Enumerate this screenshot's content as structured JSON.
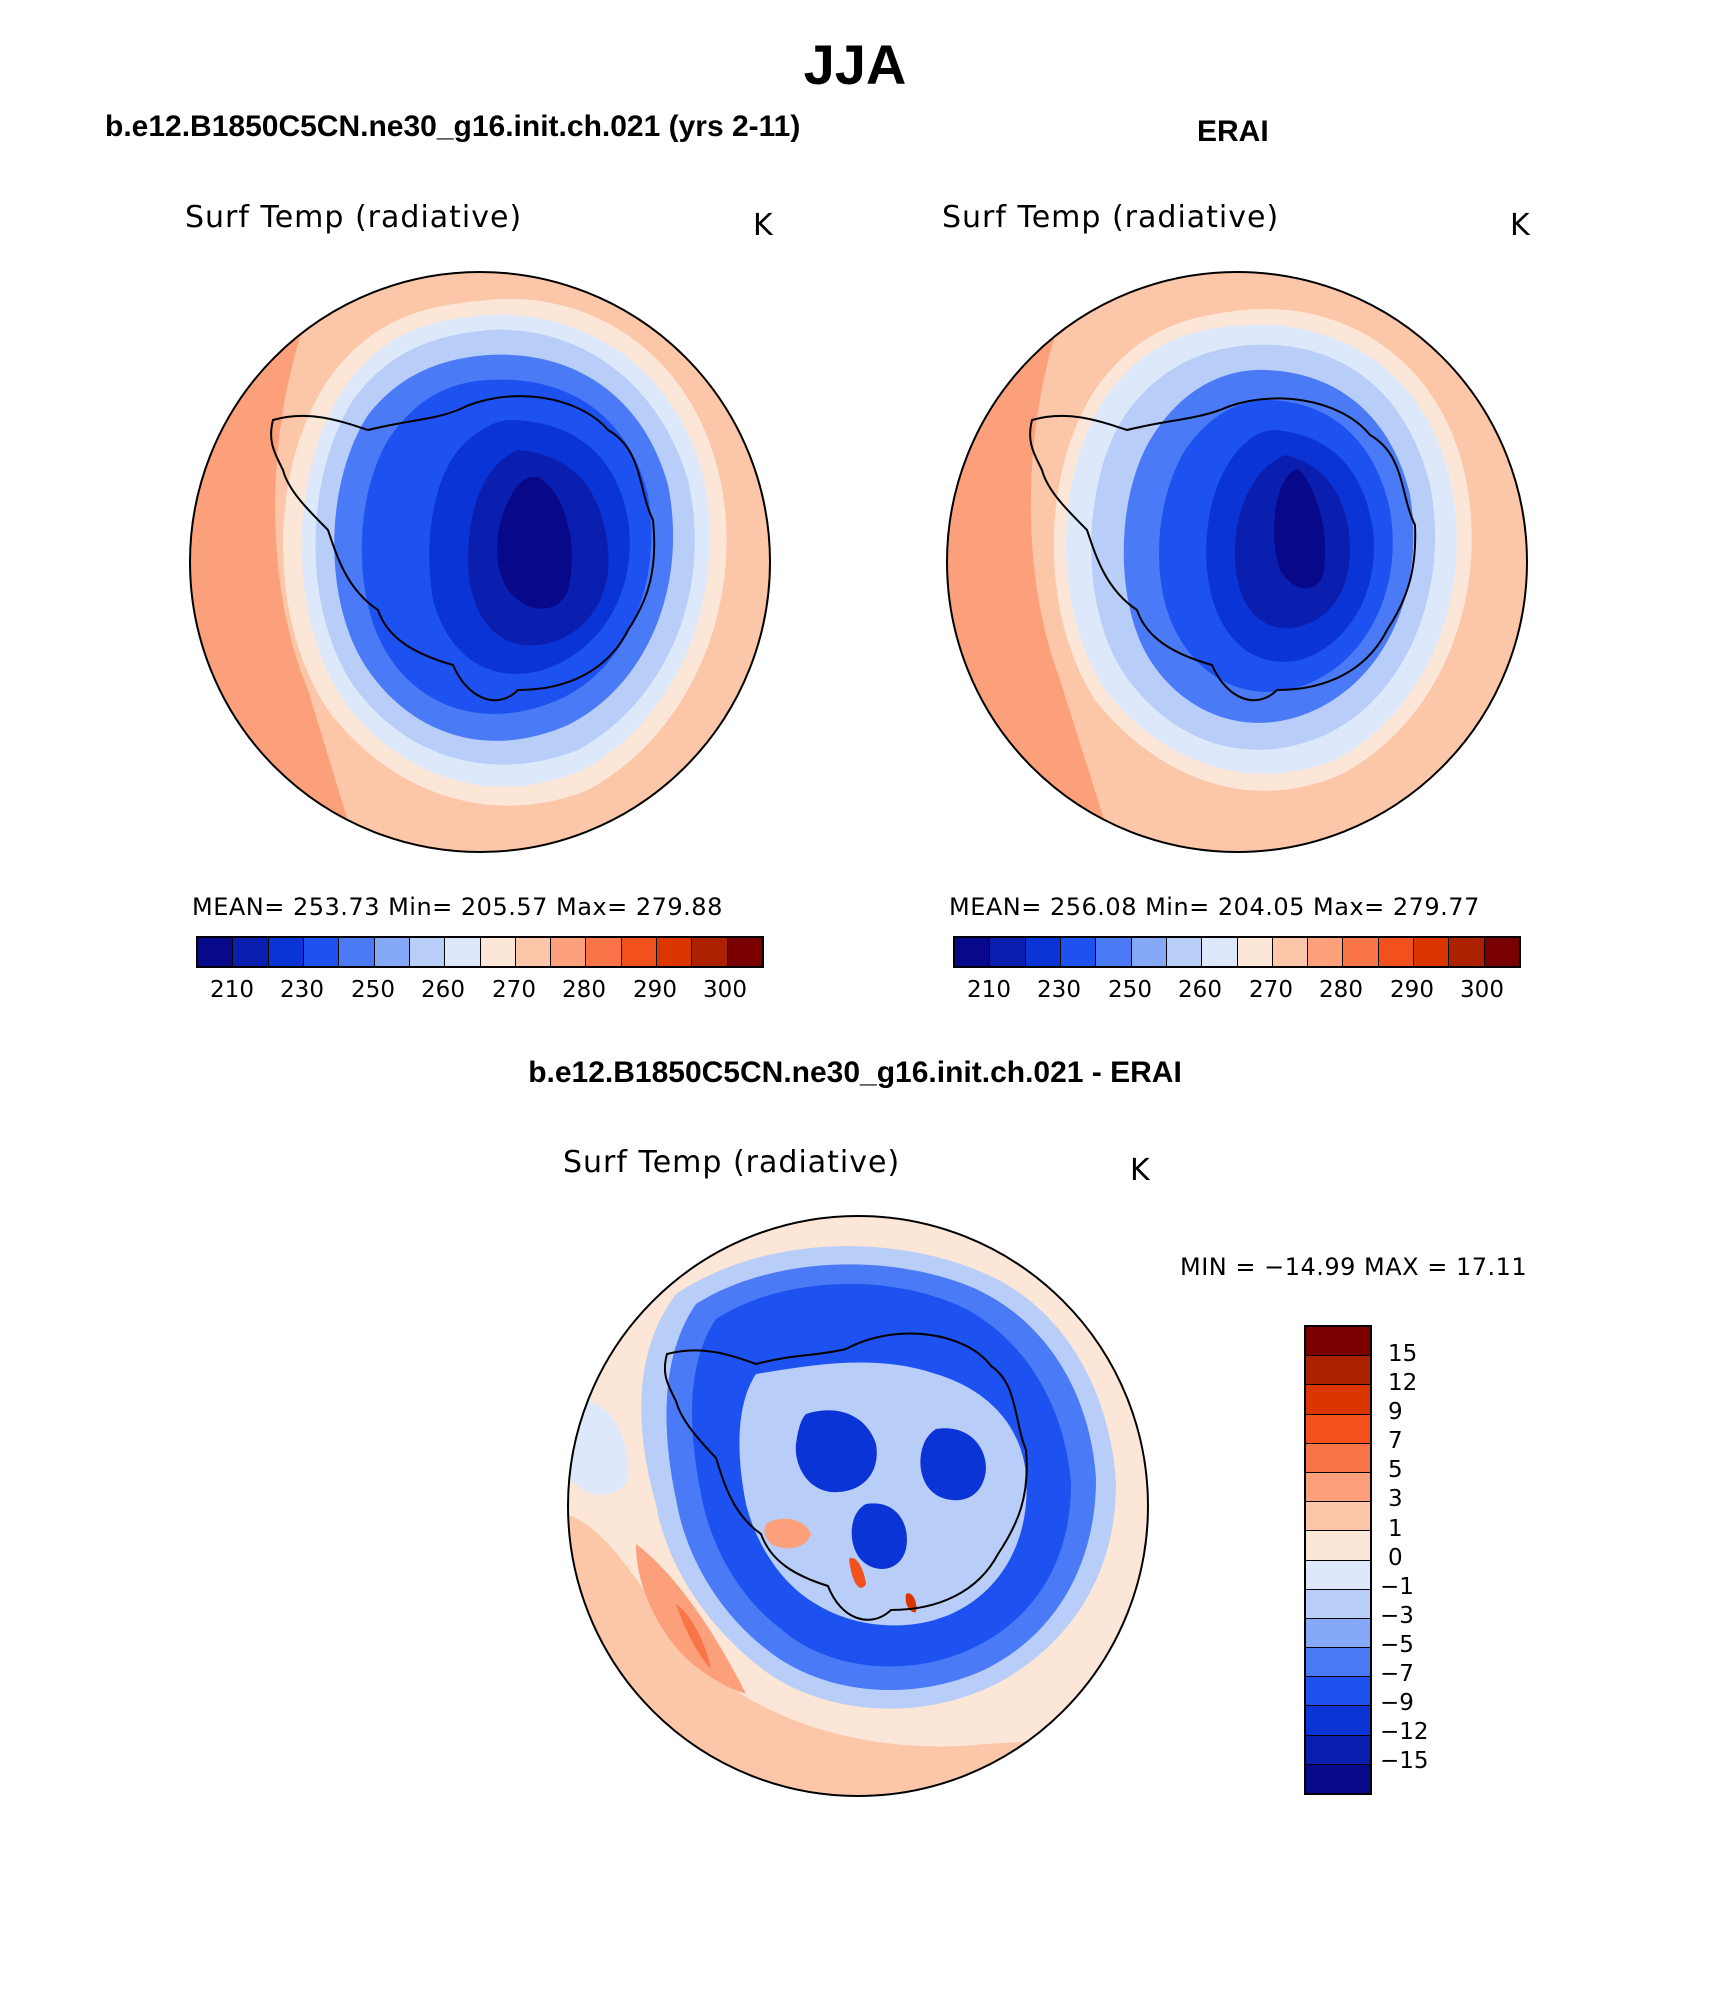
{
  "main_title": "JJA",
  "palette": [
    "#08088a",
    "#0a1fb0",
    "#0b34d6",
    "#1e52f0",
    "#4a7af5",
    "#86a9f7",
    "#b8cdf8",
    "#dde9fb",
    "#fce6d8",
    "#fcc7a9",
    "#fba07a",
    "#f97446",
    "#f2501d",
    "#db3600",
    "#ac2200",
    "#7a0000"
  ],
  "panels": [
    {
      "title": "b.e12.B1850C5CN.ne30_g16.init.ch.021 (yrs 2-11)",
      "variable": "Surf Temp (radiative)",
      "units": "K",
      "stats": "MEAN= 253.73   Min= 205.57   Max= 279.88",
      "ticks": [
        "210",
        "230",
        "250",
        "260",
        "270",
        "280",
        "290",
        "300"
      ]
    },
    {
      "title": "ERAI",
      "variable": "Surf Temp (radiative)",
      "units": "K",
      "stats": "MEAN= 256.08   Min= 204.05   Max= 279.77",
      "ticks": [
        "210",
        "230",
        "250",
        "260",
        "270",
        "280",
        "290",
        "300"
      ]
    },
    {
      "title": "b.e12.B1850C5CN.ne30_g16.init.ch.021 - ERAI",
      "variable": "Surf Temp (radiative)",
      "units": "K",
      "stats": "MIN = −14.99 MAX =   17.11",
      "ticks": [
        "15",
        "12",
        "9",
        "7",
        "5",
        "3",
        "1",
        "0",
        "−1",
        "−3",
        "−5",
        "−7",
        "−9",
        "−12",
        "−15"
      ]
    }
  ]
}
